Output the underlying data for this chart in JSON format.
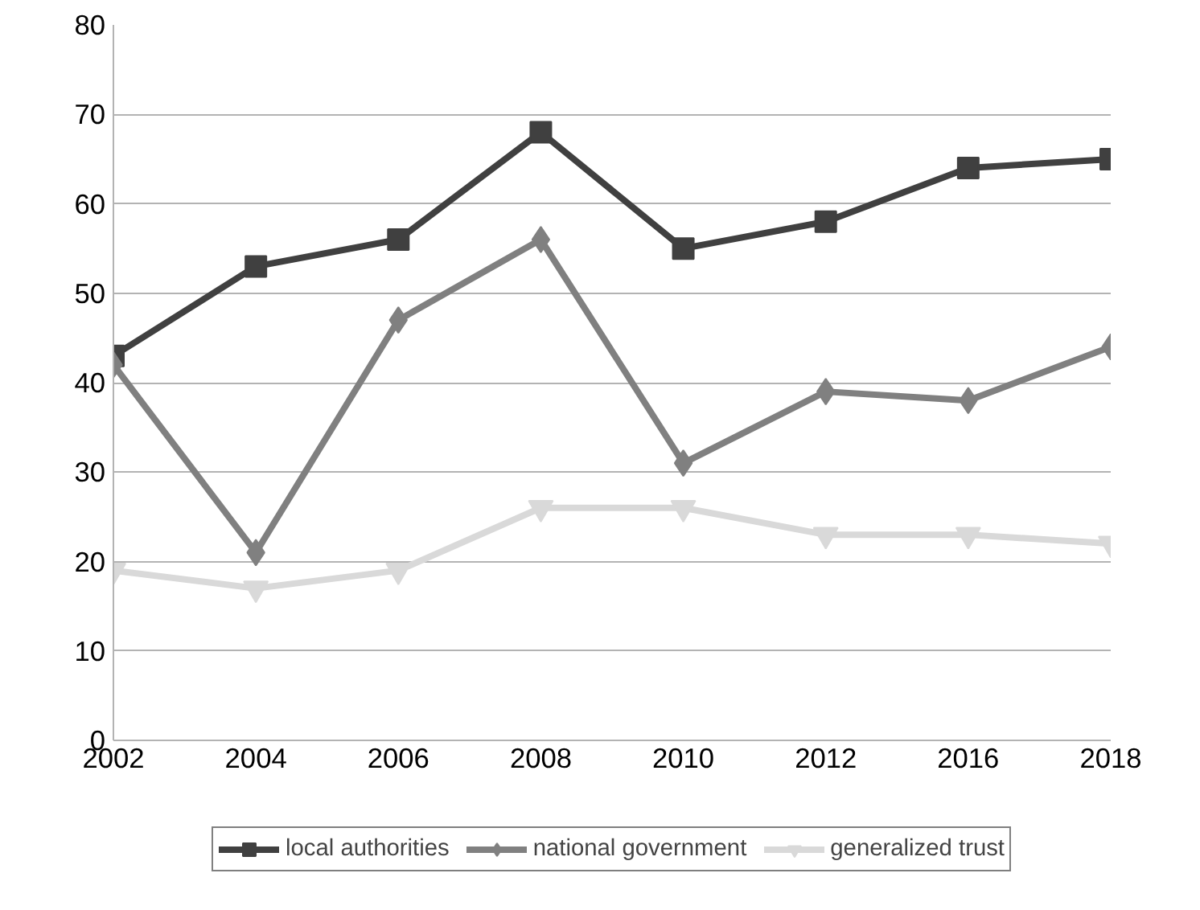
{
  "chart_data": {
    "type": "line",
    "categories": [
      "2002",
      "2004",
      "2006",
      "2008",
      "2010",
      "2012",
      "2016",
      "2018"
    ],
    "series": [
      {
        "name": "local authorities",
        "color": "#404040",
        "marker": "square",
        "values": [
          43,
          53,
          56,
          68,
          55,
          58,
          64,
          65
        ]
      },
      {
        "name": "national government",
        "color": "#808080",
        "marker": "diamond",
        "values": [
          42,
          21,
          47,
          56,
          31,
          39,
          38,
          44
        ]
      },
      {
        "name": "generalized trust",
        "color": "#d9d9d9",
        "marker": "triangle",
        "values": [
          19,
          17,
          19,
          26,
          26,
          23,
          23,
          22
        ]
      }
    ],
    "ylim": [
      0,
      80
    ],
    "yticks": [
      0,
      10,
      20,
      30,
      40,
      50,
      60,
      70,
      80
    ],
    "grid": "y",
    "legend": "bottom",
    "line_style": "solid"
  }
}
